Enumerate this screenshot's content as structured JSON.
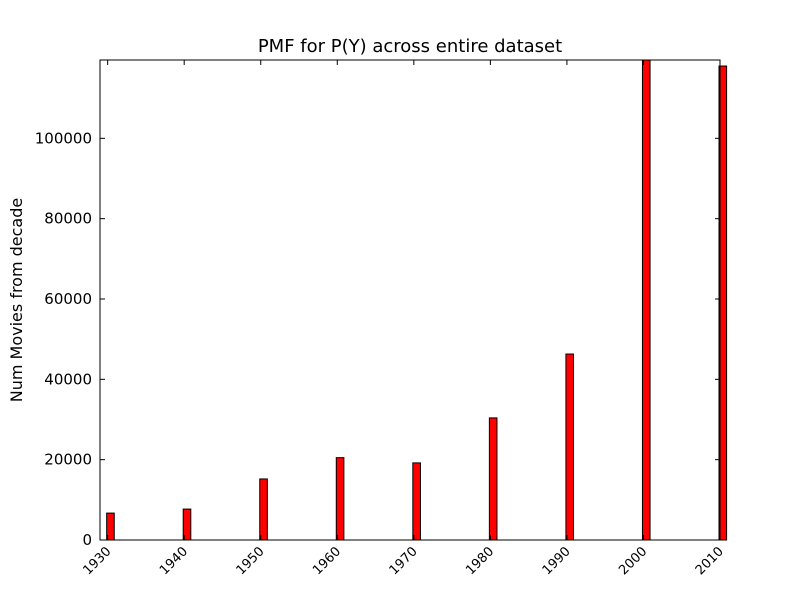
{
  "chart_data": {
    "type": "bar",
    "title": "PMF for P(Y) across entire dataset",
    "xlabel": "",
    "ylabel": "Num Movies from decade",
    "categories": [
      "1930",
      "1940",
      "1950",
      "1960",
      "1970",
      "1980",
      "1990",
      "2000",
      "2010"
    ],
    "x": [
      1930,
      1940,
      1950,
      1960,
      1970,
      1980,
      1990,
      2000,
      2010
    ],
    "values": [
      6700,
      7700,
      15200,
      20500,
      19200,
      30400,
      46300,
      119500,
      118000
    ],
    "xlim": [
      1929,
      2010
    ],
    "ylim": [
      0,
      119500
    ],
    "yticks": [
      0,
      20000,
      40000,
      60000,
      80000,
      100000
    ],
    "ytick_labels": [
      "0",
      "20000",
      "40000",
      "60000",
      "80000",
      "100000"
    ],
    "bar_color": "#ff0000",
    "grid": false
  }
}
